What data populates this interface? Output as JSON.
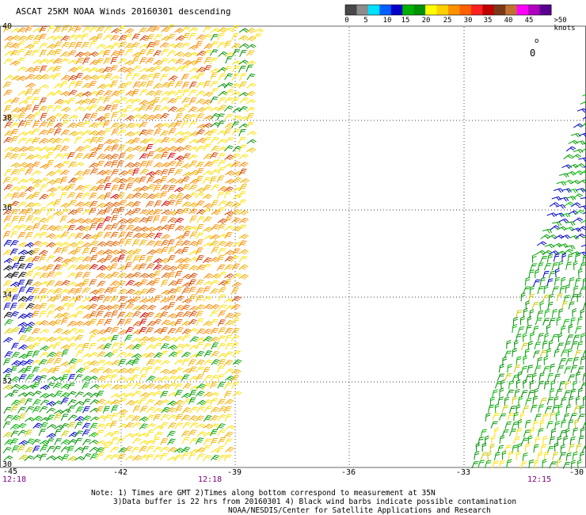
{
  "header": {
    "title": "ASCAT 25KM NOAA Winds 20160301 descending"
  },
  "colorbar": {
    "tick_labels": [
      "0",
      "5",
      "10",
      "15",
      "20",
      "25",
      "30",
      "35",
      "40",
      "45",
      ">50 knots"
    ],
    "colors": [
      "#484848",
      "#8c8c8c",
      "#00e0ff",
      "#0060ff",
      "#0000c8",
      "#00b000",
      "#009000",
      "#ffff00",
      "#ffd000",
      "#ff9000",
      "#ff6000",
      "#ff2020",
      "#c00000",
      "#7a3a1a",
      "#c07030",
      "#ff00ff",
      "#b000c0",
      "#5a0090"
    ]
  },
  "map": {
    "lat_labels": [
      "40",
      "38",
      "36",
      "34",
      "32",
      "30"
    ],
    "lon_labels": [
      "-45",
      "-42",
      "-39",
      "-36",
      "-33",
      "-30"
    ],
    "pass_times": [
      "12:18",
      "12:18",
      "12:15"
    ],
    "symbols": [
      "o",
      "0"
    ]
  },
  "footer": {
    "note_line1": "Note: 1) Times are GMT 2)Times along bottom correspond to measurement at 35N",
    "note_line2": "3)Data buffer is 22 hrs from 20160301 4) Black wind barbs indicate possible contamination",
    "note_line3": "NOAA/NESDIS/Center for Satellite Applications and Research"
  }
}
